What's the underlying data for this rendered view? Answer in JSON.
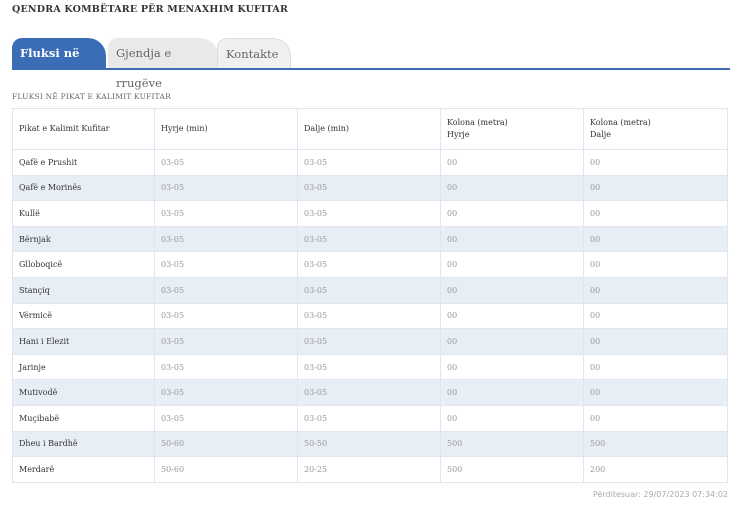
{
  "page_title": "QENDRA KOMBËTARE PËR MENAXHIM KUFITAR",
  "tabs": [
    {
      "label": "Fluksi në kufi",
      "active": true
    },
    {
      "label": "Gjendja e rrugëve",
      "active": false
    },
    {
      "label": "Kontakte",
      "active": false
    }
  ],
  "section_title": "FLUKSI NË PIKAT E KALIMIT KUFITAR",
  "table": {
    "headers": [
      {
        "line1": "Pikat e Kalimit Kufitar",
        "line2": ""
      },
      {
        "line1": "Hyrje (min)",
        "line2": ""
      },
      {
        "line1": "Dalje (min)",
        "line2": ""
      },
      {
        "line1": "Kolona (metra)",
        "line2": "Hyrje"
      },
      {
        "line1": "Kolona (metra)",
        "line2": "Dalje"
      }
    ],
    "rows": [
      [
        "Qafë e Prushit",
        "03-05",
        "03-05",
        "00",
        "00"
      ],
      [
        "Qafë e Morinës",
        "03-05",
        "03-05",
        "00",
        "00"
      ],
      [
        "Kullë",
        "03-05",
        "03-05",
        "00",
        "00"
      ],
      [
        "Bërnjak",
        "03-05",
        "03-05",
        "00",
        "00"
      ],
      [
        "Glloboqicë",
        "03-05",
        "03-05",
        "00",
        "00"
      ],
      [
        "Stançiq",
        "03-05",
        "03-05",
        "00",
        "00"
      ],
      [
        "Vërmicë",
        "03-05",
        "03-05",
        "00",
        "00"
      ],
      [
        "Hani i Elezit",
        "03-05",
        "03-05",
        "00",
        "00"
      ],
      [
        "Jarinje",
        "03-05",
        "03-05",
        "00",
        "00"
      ],
      [
        "Mutivodë",
        "03-05",
        "03-05",
        "00",
        "00"
      ],
      [
        "Muçibabë",
        "03-05",
        "03-05",
        "00",
        "00"
      ],
      [
        "Dheu i Bardhë",
        "50-60",
        "50-50",
        "500",
        "500"
      ],
      [
        "Merdarë",
        "50-60",
        "20-25",
        "500",
        "200"
      ]
    ]
  },
  "updated_text": "Përditesuar: 29/07/2023 07:34:02",
  "colors": {
    "accent": "#3a6db5",
    "row_alt": "#e8eef6",
    "inactive_tab": "#e9e9e9"
  }
}
